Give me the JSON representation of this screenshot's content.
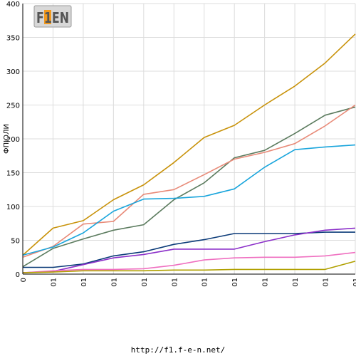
{
  "chart_data": {
    "type": "line",
    "title": "",
    "xlabel": "",
    "ylabel": "ФПЮЛИ",
    "ylim": [
      0,
      400
    ],
    "yticks": [
      0,
      50,
      100,
      150,
      200,
      250,
      300,
      350,
      400
    ],
    "x_tick_labels": [
      "0",
      "01",
      "01",
      "01",
      "01",
      "01",
      "01",
      "01",
      "01",
      "01",
      "01",
      "01"
    ],
    "grid": true,
    "series": [
      {
        "color": "#c8920a",
        "values": [
          28,
          68,
          79,
          110,
          132,
          165,
          202,
          220,
          250,
          278,
          312,
          355
        ]
      },
      {
        "color": "#5b7b5e",
        "values": [
          11,
          38,
          52,
          65,
          73,
          110,
          135,
          172,
          183,
          208,
          235,
          247
        ]
      },
      {
        "color": "#e88a78",
        "values": [
          25,
          41,
          74,
          78,
          118,
          125,
          147,
          170,
          180,
          193,
          219,
          250
        ]
      },
      {
        "color": "#19a5dc",
        "values": [
          28,
          40,
          61,
          93,
          111,
          112,
          115,
          126,
          158,
          184,
          188,
          191
        ]
      },
      {
        "color": "#0a3a78",
        "values": [
          10,
          10,
          15,
          27,
          33,
          44,
          51,
          60,
          60,
          60,
          62,
          62
        ]
      },
      {
        "color": "#8b2fc9",
        "values": [
          2,
          4,
          14,
          24,
          29,
          37,
          37,
          37,
          48,
          58,
          65,
          68
        ]
      },
      {
        "color": "#ef6fc0",
        "values": [
          2,
          5,
          7,
          7,
          8,
          13,
          21,
          24,
          25,
          25,
          27,
          32
        ]
      },
      {
        "color": "#b0a000",
        "values": [
          2,
          3,
          5,
          5,
          5,
          6,
          6,
          7,
          7,
          7,
          7,
          19
        ]
      }
    ]
  },
  "logo": {
    "text": "F1EN"
  },
  "footer": {
    "url": "http://f1.f-e-n.net/"
  }
}
